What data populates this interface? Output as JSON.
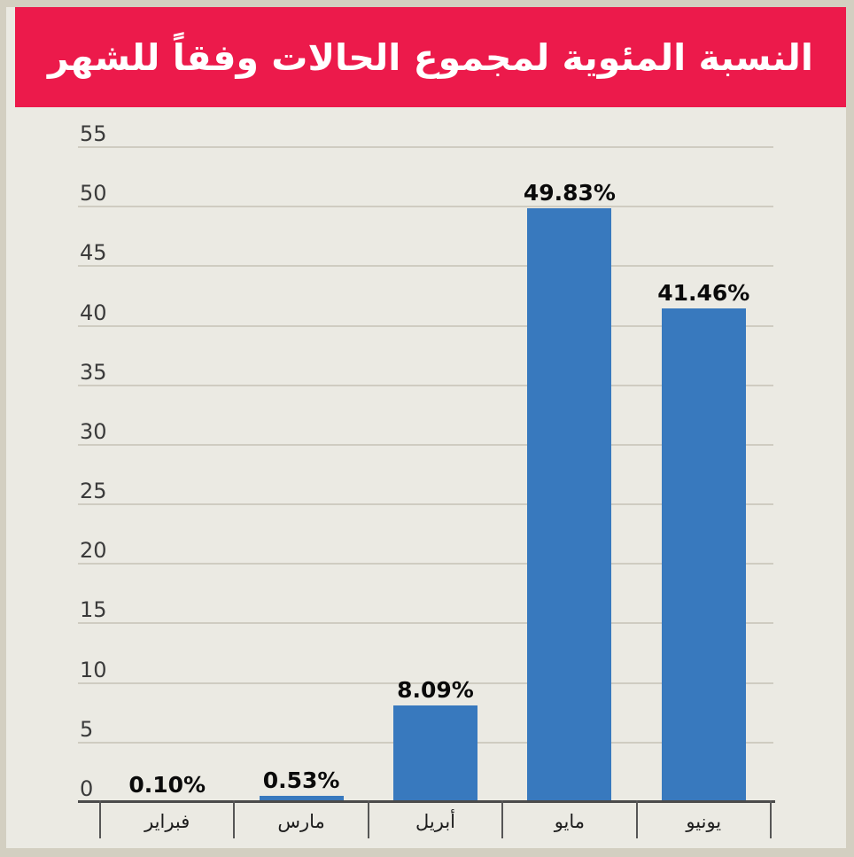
{
  "title": "النسبة المئوية لمجموع الحالات وفقاً للشهر",
  "chart_data": {
    "type": "bar",
    "title": "النسبة المئوية لمجموع الحالات وفقاً للشهر",
    "categories": [
      "فبراير",
      "مارس",
      "أبريل",
      "مايو",
      "يونيو"
    ],
    "values": [
      0.1,
      0.53,
      8.09,
      49.83,
      41.46
    ],
    "value_labels": [
      "0.10%",
      "0.53%",
      "8.09%",
      "49.83%",
      "41.46%"
    ],
    "xlabel": "",
    "ylabel": "",
    "ylim": [
      0,
      55
    ],
    "yticks": [
      0,
      5,
      10,
      15,
      20,
      25,
      30,
      35,
      40,
      45,
      50,
      55
    ],
    "grid": true,
    "legend": false
  },
  "colors": {
    "banner": "#EC1A4B",
    "bar": "#3879BE",
    "frame": "#D3CFC1",
    "panel": "#EBEAE3",
    "gridline": "#CFCCC1",
    "axis": "#4B4B4B",
    "tickline": "#565656",
    "ylabel_color": "#3B3B3B",
    "value_label_color": "#0A0A0A",
    "xlabel_color": "#1C1C1C",
    "title_color": "#FFFFFF"
  }
}
